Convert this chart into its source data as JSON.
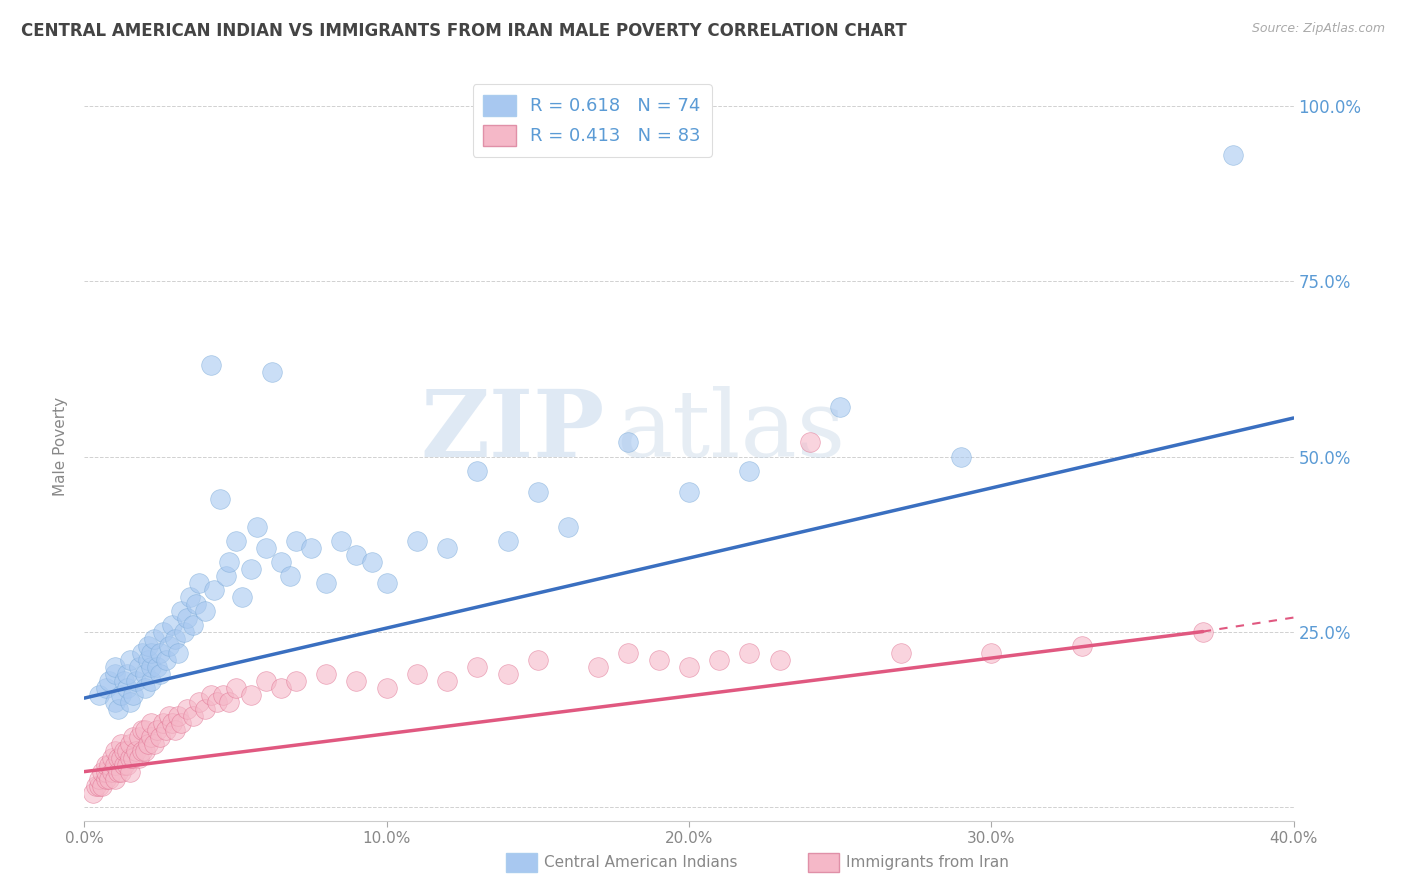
{
  "title": "CENTRAL AMERICAN INDIAN VS IMMIGRANTS FROM IRAN MALE POVERTY CORRELATION CHART",
  "source": "Source: ZipAtlas.com",
  "ylabel": "Male Poverty",
  "watermark_zip": "ZIP",
  "watermark_atlas": "atlas",
  "xmin": 0.0,
  "xmax": 0.4,
  "ymin": -0.02,
  "ymax": 1.05,
  "yticks": [
    0.0,
    0.25,
    0.5,
    0.75,
    1.0
  ],
  "ytick_labels": [
    "",
    "25.0%",
    "50.0%",
    "75.0%",
    "100.0%"
  ],
  "xticks": [
    0.0,
    0.1,
    0.2,
    0.3,
    0.4
  ],
  "xtick_labels": [
    "0.0%",
    "10.0%",
    "20.0%",
    "30.0%",
    "40.0%"
  ],
  "series1_label": "Central American Indians",
  "series1_R": "0.618",
  "series1_N": "74",
  "series1_color": "#a8c8f0",
  "series1_edge_color": "#7aaad8",
  "series1_line_color": "#3a6fc0",
  "series2_label": "Immigrants from Iran",
  "series2_R": "0.413",
  "series2_N": "83",
  "series2_color": "#f5b8c8",
  "series2_edge_color": "#e07090",
  "series2_line_color": "#e05880",
  "background_color": "#ffffff",
  "grid_color": "#cccccc",
  "title_color": "#444444",
  "axis_label_color": "#888888",
  "right_tick_color": "#5B9BD5",
  "legend_label_color": "#5B9BD5",
  "series1_x": [
    0.005,
    0.007,
    0.008,
    0.01,
    0.01,
    0.01,
    0.011,
    0.012,
    0.013,
    0.014,
    0.014,
    0.015,
    0.015,
    0.016,
    0.017,
    0.018,
    0.019,
    0.02,
    0.02,
    0.021,
    0.021,
    0.022,
    0.022,
    0.022,
    0.023,
    0.024,
    0.025,
    0.025,
    0.026,
    0.027,
    0.028,
    0.029,
    0.03,
    0.031,
    0.032,
    0.033,
    0.034,
    0.035,
    0.036,
    0.037,
    0.038,
    0.04,
    0.042,
    0.043,
    0.045,
    0.047,
    0.048,
    0.05,
    0.052,
    0.055,
    0.057,
    0.06,
    0.062,
    0.065,
    0.068,
    0.07,
    0.075,
    0.08,
    0.085,
    0.09,
    0.095,
    0.1,
    0.11,
    0.12,
    0.13,
    0.14,
    0.15,
    0.16,
    0.18,
    0.2,
    0.22,
    0.25,
    0.29,
    0.38
  ],
  "series1_y": [
    0.16,
    0.17,
    0.18,
    0.19,
    0.15,
    0.2,
    0.14,
    0.16,
    0.18,
    0.17,
    0.19,
    0.15,
    0.21,
    0.16,
    0.18,
    0.2,
    0.22,
    0.19,
    0.17,
    0.21,
    0.23,
    0.18,
    0.2,
    0.22,
    0.24,
    0.2,
    0.22,
    0.19,
    0.25,
    0.21,
    0.23,
    0.26,
    0.24,
    0.22,
    0.28,
    0.25,
    0.27,
    0.3,
    0.26,
    0.29,
    0.32,
    0.28,
    0.63,
    0.31,
    0.44,
    0.33,
    0.35,
    0.38,
    0.3,
    0.34,
    0.4,
    0.37,
    0.62,
    0.35,
    0.33,
    0.38,
    0.37,
    0.32,
    0.38,
    0.36,
    0.35,
    0.32,
    0.38,
    0.37,
    0.48,
    0.38,
    0.45,
    0.4,
    0.52,
    0.45,
    0.48,
    0.57,
    0.5,
    0.93
  ],
  "series2_x": [
    0.003,
    0.004,
    0.005,
    0.005,
    0.006,
    0.006,
    0.007,
    0.007,
    0.007,
    0.008,
    0.008,
    0.009,
    0.009,
    0.01,
    0.01,
    0.01,
    0.011,
    0.011,
    0.012,
    0.012,
    0.012,
    0.013,
    0.013,
    0.014,
    0.014,
    0.015,
    0.015,
    0.015,
    0.016,
    0.016,
    0.017,
    0.018,
    0.018,
    0.019,
    0.019,
    0.02,
    0.02,
    0.021,
    0.022,
    0.022,
    0.023,
    0.024,
    0.025,
    0.026,
    0.027,
    0.028,
    0.029,
    0.03,
    0.031,
    0.032,
    0.034,
    0.036,
    0.038,
    0.04,
    0.042,
    0.044,
    0.046,
    0.048,
    0.05,
    0.055,
    0.06,
    0.065,
    0.07,
    0.08,
    0.09,
    0.1,
    0.11,
    0.12,
    0.13,
    0.14,
    0.15,
    0.17,
    0.18,
    0.19,
    0.2,
    0.21,
    0.22,
    0.23,
    0.24,
    0.27,
    0.3,
    0.33,
    0.37
  ],
  "series2_y": [
    0.02,
    0.03,
    0.03,
    0.04,
    0.03,
    0.05,
    0.04,
    0.05,
    0.06,
    0.04,
    0.06,
    0.05,
    0.07,
    0.04,
    0.06,
    0.08,
    0.05,
    0.07,
    0.05,
    0.07,
    0.09,
    0.06,
    0.08,
    0.06,
    0.08,
    0.05,
    0.07,
    0.09,
    0.07,
    0.1,
    0.08,
    0.07,
    0.1,
    0.08,
    0.11,
    0.08,
    0.11,
    0.09,
    0.1,
    0.12,
    0.09,
    0.11,
    0.1,
    0.12,
    0.11,
    0.13,
    0.12,
    0.11,
    0.13,
    0.12,
    0.14,
    0.13,
    0.15,
    0.14,
    0.16,
    0.15,
    0.16,
    0.15,
    0.17,
    0.16,
    0.18,
    0.17,
    0.18,
    0.19,
    0.18,
    0.17,
    0.19,
    0.18,
    0.2,
    0.19,
    0.21,
    0.2,
    0.22,
    0.21,
    0.2,
    0.21,
    0.22,
    0.21,
    0.52,
    0.22,
    0.22,
    0.23,
    0.25
  ],
  "trend1_x0": 0.0,
  "trend1_x1": 0.4,
  "trend1_y0": 0.155,
  "trend1_y1": 0.555,
  "trend2_solid_x0": 0.0,
  "trend2_solid_x1": 0.37,
  "trend2_y0": 0.05,
  "trend2_y1": 0.25,
  "trend2_dash_x0": 0.37,
  "trend2_dash_x1": 0.4,
  "trend2_dash_y0": 0.25,
  "trend2_dash_y1": 0.27
}
